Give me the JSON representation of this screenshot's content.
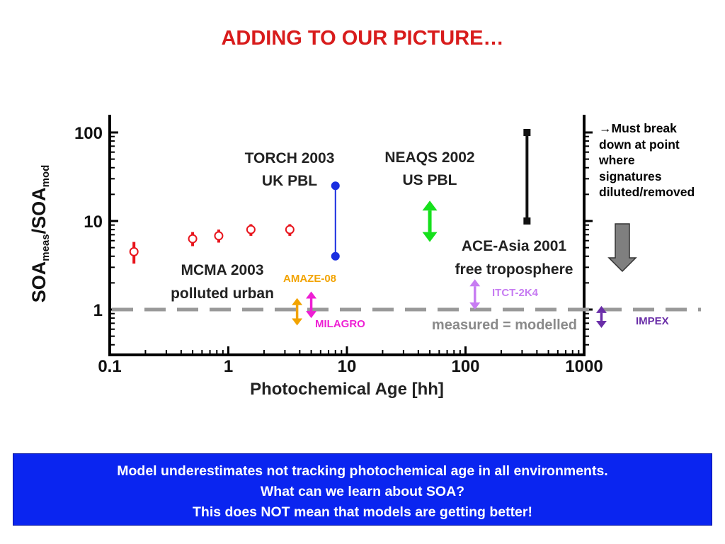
{
  "title": "ADDING TO OUR PICTURE…",
  "side_note": {
    "arrow": "→",
    "lines": [
      "Must break",
      "down at point",
      "where",
      "signatures",
      "diluted/removed"
    ]
  },
  "footer": {
    "line1": "Model underestimates not tracking photochemical age in all environments.",
    "line2": "What can we learn about SOA?",
    "line3": "This does NOT mean that models are getting better!"
  },
  "chart_data": {
    "type": "scatter",
    "x_scale": "log",
    "y_scale": "log",
    "xlim": [
      0.1,
      1000
    ],
    "ylim": [
      0.5,
      130
    ],
    "xlabel": "Photochemical Age [hh]",
    "ylabel": {
      "main": "SOA",
      "sub1": "meas",
      "mid": "/SOA",
      "sub2": "mod"
    },
    "x_ticks": [
      {
        "value": 0.1,
        "label": "0.1"
      },
      {
        "value": 1,
        "label": "1"
      },
      {
        "value": 10,
        "label": "10"
      },
      {
        "value": 100,
        "label": "100"
      },
      {
        "value": 1000,
        "label": "1000"
      }
    ],
    "y_ticks": [
      {
        "value": 1,
        "label": "1"
      },
      {
        "value": 10,
        "label": "10"
      },
      {
        "value": 100,
        "label": "100"
      }
    ],
    "reference_line": {
      "y": 1,
      "label": "measured = modelled",
      "color": "#999999"
    },
    "series": [
      {
        "name": "MCMA 2003",
        "color": "#e8141c",
        "points": [
          {
            "x": 0.16,
            "y": 4.5,
            "low": 3.3,
            "high": 5.8
          },
          {
            "x": 0.5,
            "y": 6.3,
            "low": 5.2,
            "high": 7.5
          },
          {
            "x": 0.83,
            "y": 6.8,
            "low": 5.7,
            "high": 8.0
          },
          {
            "x": 1.55,
            "y": 8.0,
            "low": 6.8,
            "high": 9.2
          },
          {
            "x": 3.3,
            "y": 8.0,
            "low": 6.8,
            "high": 9.2
          }
        ]
      },
      {
        "name": "TORCH 2003",
        "color": "#1a2ee0",
        "points": [
          {
            "x": 8.0,
            "y": 25
          },
          {
            "x": 8.0,
            "y": 4
          }
        ]
      },
      {
        "name": "ACE-Asia 2001",
        "color": "#111111",
        "points": [
          {
            "x": 330,
            "y": 100
          },
          {
            "x": 330,
            "y": 10
          }
        ]
      }
    ],
    "range_arrows": [
      {
        "label": "NEAQS 2002",
        "x": 50,
        "y_low": 5.8,
        "y_high": 17,
        "color": "#16e01c"
      },
      {
        "label": "AMAZE-08",
        "x": 3.8,
        "y_low": 0.66,
        "y_high": 1.35,
        "color": "#f2a300"
      },
      {
        "label": "MILAGRO",
        "x": 5.0,
        "y_low": 0.8,
        "y_high": 1.6,
        "color": "#ee1fd4"
      },
      {
        "label": "ITCT-2K4",
        "x": 120,
        "y_low": 1.0,
        "y_high": 2.2,
        "color": "#c77cf2"
      },
      {
        "label": "IMPEX",
        "x": 1400,
        "y_low": 0.62,
        "y_high": 1.1,
        "color": "#6a2ea8"
      }
    ],
    "annotations": [
      {
        "line1": "TORCH 2003",
        "line2": "UK PBL"
      },
      {
        "line1": "NEAQS 2002",
        "line2": "US PBL"
      },
      {
        "line1": "ACE-Asia 2001",
        "line2": "free troposphere"
      },
      {
        "line1": "MCMA 2003",
        "line2": "polluted urban"
      }
    ],
    "outline_arrow_color": "#7f7f7f"
  }
}
